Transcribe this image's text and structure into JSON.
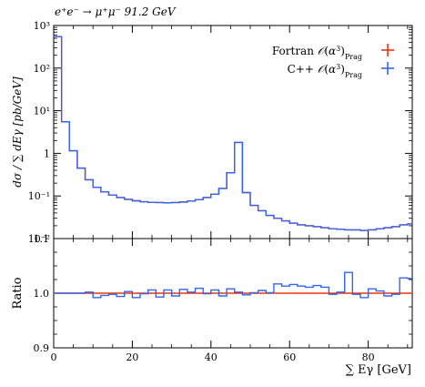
{
  "chart_data": [
    {
      "type": "line",
      "panel": "main",
      "title": "e⁺e⁻ → μ⁺μ⁻ 91.2 GeV",
      "xlabel": "",
      "ylabel": "dσ / ∑ dEγ [pb/GeV]",
      "yscale": "log",
      "xlim": [
        0,
        91.2
      ],
      "ylim": [
        0.01,
        1000
      ],
      "grid": false,
      "legend_position": "top-right",
      "x_edges": [
        0,
        2,
        4,
        6,
        8,
        10,
        12,
        14,
        16,
        18,
        20,
        22,
        24,
        26,
        28,
        30,
        32,
        34,
        36,
        38,
        40,
        42,
        44,
        46,
        48,
        50,
        52,
        54,
        56,
        58,
        60,
        62,
        64,
        66,
        68,
        70,
        72,
        74,
        76,
        78,
        80,
        82,
        84,
        86,
        88,
        90,
        91.2
      ],
      "yticks": [
        {
          "value": 1000,
          "label": "10³"
        },
        {
          "value": 100,
          "label": "10²"
        },
        {
          "value": 10,
          "label": "10¹"
        },
        {
          "value": 1,
          "label": "1"
        },
        {
          "value": 0.1,
          "label": "10⁻¹"
        },
        {
          "value": 0.01,
          "label": "10⁻²"
        }
      ],
      "series": [
        {
          "name": "Fortran 𝒪(α³)Prag",
          "color": "#ee3311",
          "values": [
            550,
            5.5,
            1.15,
            0.45,
            0.24,
            0.16,
            0.125,
            0.105,
            0.092,
            0.083,
            0.077,
            0.073,
            0.071,
            0.07,
            0.069,
            0.07,
            0.072,
            0.076,
            0.082,
            0.092,
            0.11,
            0.15,
            0.35,
            1.8,
            0.12,
            0.06,
            0.045,
            0.035,
            0.03,
            0.026,
            0.023,
            0.021,
            0.02,
            0.019,
            0.018,
            0.017,
            0.0165,
            0.016,
            0.016,
            0.0155,
            0.016,
            0.017,
            0.018,
            0.019,
            0.021,
            0.022
          ]
        },
        {
          "name": "C++ 𝒪(α³)Prag",
          "color": "#3366ee",
          "values": [
            550,
            5.5,
            1.15,
            0.45,
            0.24,
            0.16,
            0.125,
            0.105,
            0.092,
            0.083,
            0.077,
            0.073,
            0.071,
            0.07,
            0.069,
            0.07,
            0.072,
            0.076,
            0.082,
            0.092,
            0.11,
            0.15,
            0.35,
            1.8,
            0.12,
            0.06,
            0.045,
            0.035,
            0.03,
            0.026,
            0.023,
            0.021,
            0.02,
            0.019,
            0.018,
            0.017,
            0.0165,
            0.016,
            0.016,
            0.0155,
            0.016,
            0.017,
            0.018,
            0.019,
            0.021,
            0.022
          ]
        }
      ]
    },
    {
      "type": "line",
      "panel": "ratio",
      "xlabel": "∑ Eγ [GeV]",
      "ylabel": "Ratio",
      "xlim": [
        0,
        91.2
      ],
      "ylim": [
        0.9,
        1.1
      ],
      "grid": false,
      "xticks": [
        {
          "value": 0,
          "label": "0"
        },
        {
          "value": 20,
          "label": "20"
        },
        {
          "value": 40,
          "label": "40"
        },
        {
          "value": 60,
          "label": "60"
        },
        {
          "value": 80,
          "label": "80"
        }
      ],
      "yticks": [
        {
          "value": 0.9,
          "label": "0.9"
        },
        {
          "value": 1.0,
          "label": "1.0"
        },
        {
          "value": 1.1,
          "label": "1.1"
        }
      ],
      "x_edges": [
        0,
        2,
        4,
        6,
        8,
        10,
        12,
        14,
        16,
        18,
        20,
        22,
        24,
        26,
        28,
        30,
        32,
        34,
        36,
        38,
        40,
        42,
        44,
        46,
        48,
        50,
        52,
        54,
        56,
        58,
        60,
        62,
        64,
        66,
        68,
        70,
        72,
        74,
        76,
        78,
        80,
        82,
        84,
        86,
        88,
        90,
        91.2
      ],
      "series": [
        {
          "name": "Fortran 𝒪(α³)Prag",
          "color": "#ee3311",
          "values": [
            1,
            1,
            1,
            1,
            1,
            1,
            1,
            1,
            1,
            1,
            1,
            1,
            1,
            1,
            1,
            1,
            1,
            1,
            1,
            1,
            1,
            1,
            1,
            1,
            1,
            1,
            1,
            1,
            1,
            1,
            1,
            1,
            1,
            1,
            1,
            1,
            1,
            1,
            1,
            1,
            1,
            1,
            1,
            1,
            1,
            1
          ]
        },
        {
          "name": "C++ 𝒪(α³)Prag",
          "color": "#3366ee",
          "values": [
            1,
            1,
            1,
            1,
            1.002,
            0.992,
            0.996,
            0.998,
            0.994,
            1.003,
            0.992,
            0.999,
            1.006,
            0.993,
            1.006,
            0.995,
            1.007,
            1.002,
            1.009,
            0.999,
            1.006,
            0.995,
            1.008,
            1.002,
            0.997,
            1.001,
            1.005,
            1.001,
            1.017,
            1.013,
            1.016,
            1.013,
            1.011,
            1.014,
            1.011,
            0.998,
            1.002,
            1.038,
            0.998,
            0.992,
            1.008,
            1.004,
            0.995,
            0.998,
            1.028,
            1.027
          ]
        }
      ]
    }
  ],
  "legend": {
    "entries": [
      {
        "label_prefix": "Fortran ",
        "label_sub": "Prag",
        "color": "#ee3311"
      },
      {
        "label_prefix": "C++ ",
        "label_sub": "Prag",
        "color": "#3366ee"
      }
    ]
  }
}
